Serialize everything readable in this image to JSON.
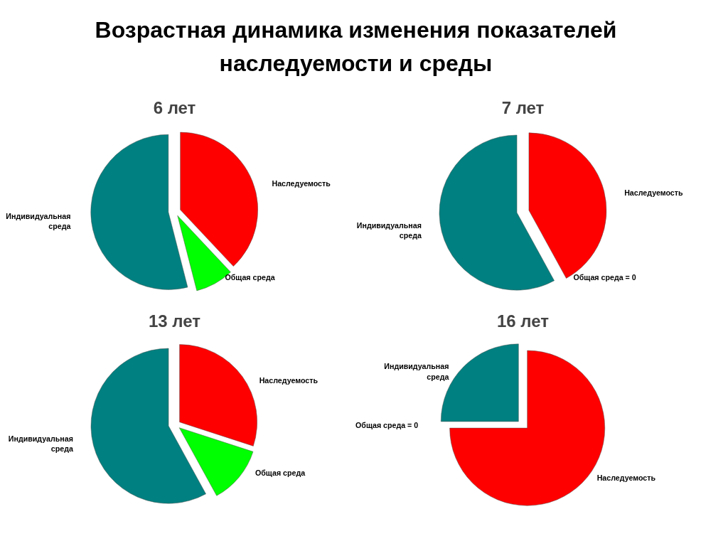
{
  "chart_data": [
    {
      "type": "other",
      "title": "Возрастная динамика изменения показателей\nнаследуемости и среды"
    },
    {
      "type": "pie",
      "title": "6 лет",
      "categories": [
        "Наследуемость",
        "Общая среда",
        "Индивидуальная\nсреда"
      ],
      "values": [
        38,
        8,
        54
      ],
      "colors": [
        "#ff0000",
        "#00ff00",
        "#008080"
      ]
    },
    {
      "type": "pie",
      "title": "7 лет",
      "categories": [
        "Наследуемость",
        "Общая среда = 0",
        "Индивидуальная\nсреда"
      ],
      "values": [
        42,
        0,
        58
      ],
      "colors": [
        "#ff0000",
        "#00ff00",
        "#008080"
      ]
    },
    {
      "type": "pie",
      "title": "13 лет",
      "categories": [
        "Наследуемость",
        "Общая среда",
        "Индивидуальная\nсреда"
      ],
      "values": [
        30,
        12,
        58
      ],
      "colors": [
        "#ff0000",
        "#00ff00",
        "#008080"
      ]
    },
    {
      "type": "pie",
      "title": "16 лет",
      "categories": [
        "Наследуемость",
        "Общая среда = 0",
        "Индивидуальная\nсреда"
      ],
      "values": [
        75,
        0,
        25
      ],
      "colors": [
        "#ff0000",
        "#00ff00",
        "#008080"
      ]
    }
  ]
}
